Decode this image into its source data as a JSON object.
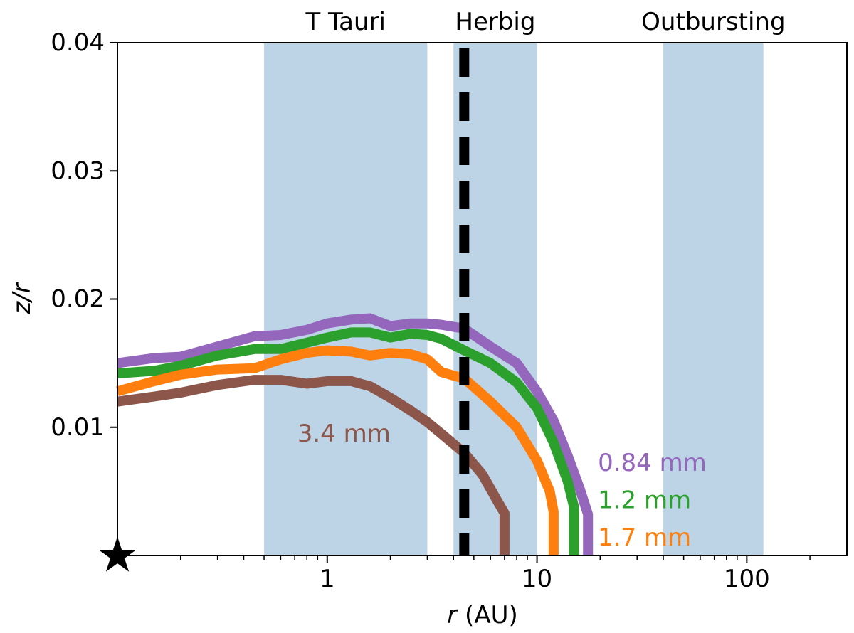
{
  "chart_data": {
    "type": "line",
    "xscale": "log",
    "xlim": [
      0.1,
      300
    ],
    "ylim": [
      0,
      0.04
    ],
    "xlabel": "r (AU)",
    "xlabel_italic_part": "r",
    "xlabel_rest": " (AU)",
    "ylabel": "z/r",
    "xticks": [
      {
        "value": 1,
        "label": "1"
      },
      {
        "value": 10,
        "label": "10"
      },
      {
        "value": 100,
        "label": "100"
      }
    ],
    "yticks": [
      {
        "value": 0.01,
        "label": "0.01"
      },
      {
        "value": 0.02,
        "label": "0.02"
      },
      {
        "value": 0.03,
        "label": "0.03"
      },
      {
        "value": 0.04,
        "label": "0.04"
      }
    ],
    "shaded_regions": [
      {
        "label": "T Tauri",
        "x0": 0.5,
        "x1": 3.0,
        "color": "#bcd4e6"
      },
      {
        "label": "Herbig",
        "x0": 4.0,
        "x1": 10.0,
        "color": "#bcd4e6"
      },
      {
        "label": "Outbursting",
        "x0": 40,
        "x1": 120,
        "color": "#bcd4e6"
      }
    ],
    "vline": {
      "x": 4.5,
      "color": "#000000",
      "style": "dashed"
    },
    "star_marker": {
      "x": 0.1,
      "y": 0.0,
      "symbol": "★"
    },
    "series": [
      {
        "name": "0.84 mm",
        "color": "#9467bd",
        "x": [
          0.1,
          0.15,
          0.2,
          0.3,
          0.45,
          0.6,
          0.8,
          1.0,
          1.3,
          1.6,
          2.0,
          2.5,
          3.0,
          3.5,
          4.5,
          6.0,
          8.0,
          10,
          12,
          14,
          16,
          17.5,
          17.5
        ],
        "y": [
          0.015,
          0.0154,
          0.0155,
          0.0163,
          0.0171,
          0.0172,
          0.0176,
          0.0181,
          0.0184,
          0.0185,
          0.0179,
          0.0181,
          0.0181,
          0.018,
          0.0177,
          0.0163,
          0.015,
          0.0128,
          0.0105,
          0.0078,
          0.0052,
          0.0032,
          0.0
        ]
      },
      {
        "name": "1.2 mm",
        "color": "#2ca02c",
        "x": [
          0.1,
          0.15,
          0.2,
          0.3,
          0.45,
          0.6,
          0.8,
          1.0,
          1.3,
          1.6,
          2.0,
          2.5,
          3.0,
          3.5,
          4.5,
          6.0,
          8.0,
          10,
          12,
          14,
          15,
          15
        ],
        "y": [
          0.0142,
          0.0144,
          0.0148,
          0.0156,
          0.0161,
          0.0161,
          0.0166,
          0.017,
          0.0174,
          0.0174,
          0.017,
          0.0173,
          0.0172,
          0.0169,
          0.016,
          0.015,
          0.0135,
          0.0115,
          0.0088,
          0.0058,
          0.0038,
          0.0
        ]
      },
      {
        "name": "1.7 mm",
        "color": "#ff7f0e",
        "x": [
          0.1,
          0.15,
          0.2,
          0.3,
          0.45,
          0.6,
          0.8,
          1.0,
          1.3,
          1.6,
          2.0,
          2.5,
          3.0,
          3.5,
          4.5,
          6.0,
          8.0,
          10,
          11.5,
          12,
          12
        ],
        "y": [
          0.0128,
          0.0136,
          0.0141,
          0.0145,
          0.0146,
          0.0153,
          0.0158,
          0.016,
          0.0159,
          0.0156,
          0.0158,
          0.0157,
          0.0153,
          0.0143,
          0.0138,
          0.012,
          0.01,
          0.0074,
          0.005,
          0.0034,
          0.0
        ]
      },
      {
        "name": "3.4 mm",
        "color": "#8c564b",
        "x": [
          0.1,
          0.15,
          0.2,
          0.3,
          0.45,
          0.6,
          0.8,
          1.0,
          1.3,
          1.6,
          2.0,
          2.5,
          3.0,
          3.5,
          4.5,
          5.5,
          6.5,
          7.0,
          7.0
        ],
        "y": [
          0.012,
          0.0124,
          0.0127,
          0.0133,
          0.0137,
          0.0137,
          0.0134,
          0.0136,
          0.0136,
          0.0132,
          0.0123,
          0.0113,
          0.0104,
          0.0095,
          0.008,
          0.0063,
          0.0042,
          0.0033,
          0.0
        ]
      }
    ],
    "annotations": [
      {
        "text": "3.4 mm",
        "x": 0.72,
        "y": 0.0095,
        "color": "#8c564b"
      },
      {
        "text": "0.84 mm",
        "x": 19.5,
        "y": 0.0072,
        "color": "#9467bd"
      },
      {
        "text": "1.2 mm",
        "x": 19.5,
        "y": 0.0043,
        "color": "#2ca02c"
      },
      {
        "text": "1.7 mm",
        "x": 19.5,
        "y": 0.0014,
        "color": "#ff7f0e"
      }
    ]
  }
}
